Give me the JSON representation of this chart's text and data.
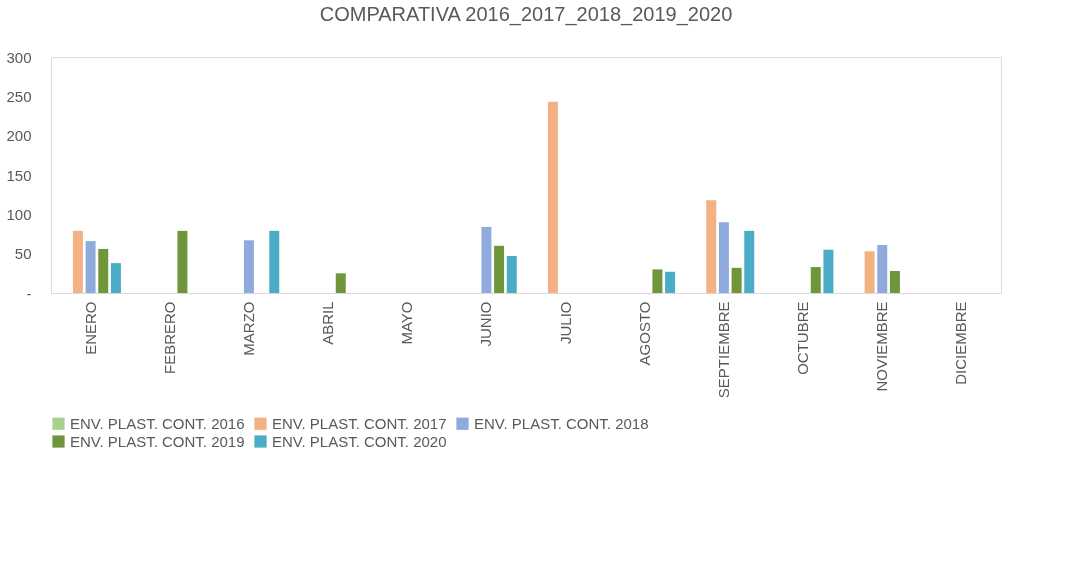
{
  "chart_data": {
    "type": "bar",
    "title": "COMPARATIVA  2016_2017_2018_2019_2020",
    "categories": [
      "ENERO",
      "FEBRERO",
      "MARZO",
      "ABRIL",
      "MAYO",
      "JUNIO",
      "JULIO",
      "AGOSTO",
      "SEPTIEMBRE",
      "OCTUBRE",
      "NOVIEMBRE",
      "DICIEMBRE"
    ],
    "series": [
      {
        "name": "ENV. PLAST. CONT. 2016",
        "color": "#a9d18e",
        "values": [
          null,
          null,
          null,
          null,
          null,
          null,
          null,
          null,
          null,
          null,
          null,
          null
        ]
      },
      {
        "name": "ENV. PLAST. CONT. 2017",
        "color": "#f4b183",
        "values": [
          79,
          null,
          null,
          null,
          null,
          null,
          243,
          null,
          118,
          null,
          53,
          null
        ]
      },
      {
        "name": "ENV. PLAST. CONT. 2018",
        "color": "#8faadc",
        "values": [
          66,
          null,
          67,
          null,
          null,
          84,
          null,
          null,
          90,
          null,
          61,
          null
        ]
      },
      {
        "name": "ENV. PLAST. CONT. 2019",
        "color": "#70963c",
        "values": [
          56,
          79,
          null,
          25,
          null,
          60,
          null,
          30,
          32,
          33,
          28,
          null
        ]
      },
      {
        "name": "ENV. PLAST. CONT. 2020",
        "color": "#4bacc6",
        "values": [
          38,
          null,
          79,
          null,
          null,
          47,
          null,
          27,
          79,
          55,
          null,
          null
        ]
      }
    ],
    "ylim": [
      0,
      300
    ],
    "yticks": [
      {
        "value": 0,
        "label": "-"
      },
      50,
      100,
      150,
      200,
      250,
      300
    ],
    "grid": false,
    "legend": "bottom"
  }
}
